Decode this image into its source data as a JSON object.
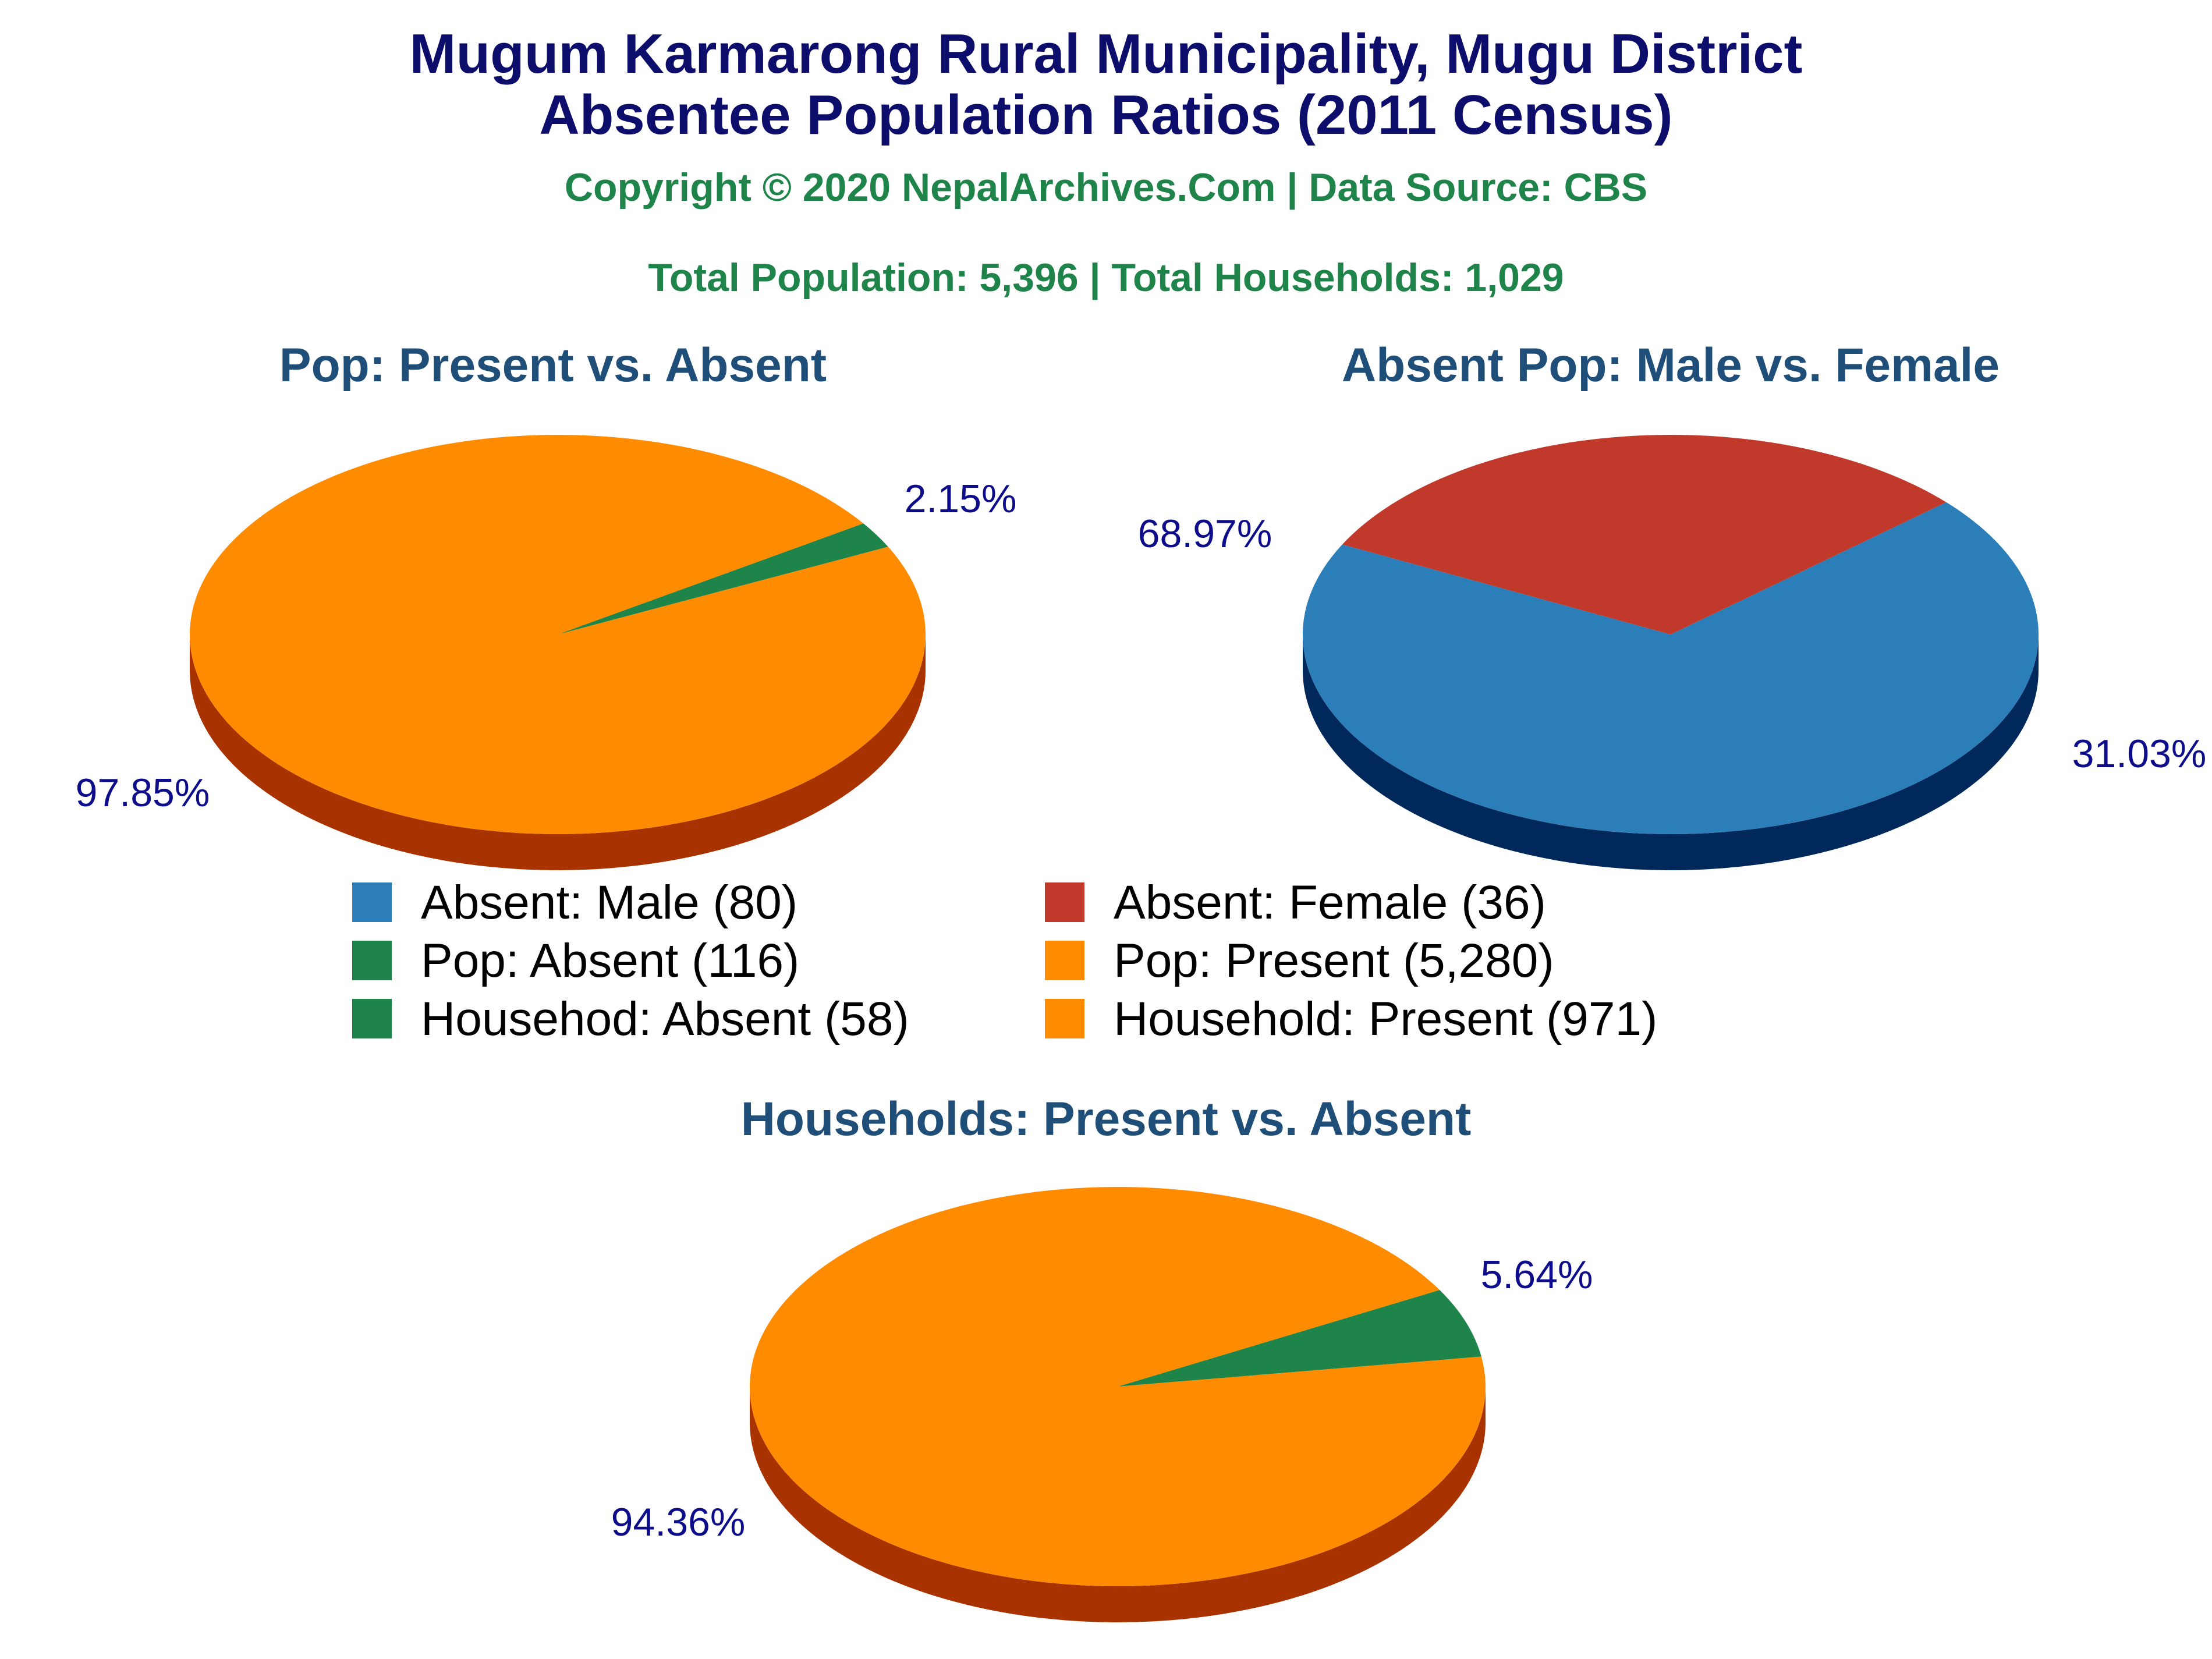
{
  "title_line1": "Mugum Karmarong Rural Municipality, Mugu District",
  "title_line2": "Absentee Population Ratios (2011 Census)",
  "copyright": "Copyright © 2020 NepalArchives.Com | Data Source: CBS",
  "totals": "Total Population: 5,396 | Total Households: 1,029",
  "colors": {
    "orange": "#ff8c00",
    "orange_side": "#a83200",
    "green": "#1e8449",
    "green_side": "#145a32",
    "blue": "#2b7eb8",
    "blue_side": "#00285a",
    "red": "#c0392b",
    "red_side": "#6b0000"
  },
  "chart_data": [
    {
      "type": "pie",
      "title": "Pop: Present vs. Absent",
      "slices": [
        {
          "label": "Pop: Absent",
          "value": 116,
          "percent_label": "2.15%",
          "color": "#1e8449"
        },
        {
          "label": "Pop: Present",
          "value": 5280,
          "percent_label": "97.85%",
          "color": "#ff8c00"
        }
      ]
    },
    {
      "type": "pie",
      "title": "Absent Pop: Male vs. Female",
      "slices": [
        {
          "label": "Absent: Male",
          "value": 80,
          "percent_label": "68.97%",
          "color": "#2b7eb8"
        },
        {
          "label": "Absent: Female",
          "value": 36,
          "percent_label": "31.03%",
          "color": "#c0392b"
        }
      ]
    },
    {
      "type": "pie",
      "title": "Households: Present vs. Absent",
      "slices": [
        {
          "label": "Househod: Absent",
          "value": 58,
          "percent_label": "5.64%",
          "color": "#1e8449"
        },
        {
          "label": "Household: Present",
          "value": 971,
          "percent_label": "94.36%",
          "color": "#ff8c00"
        }
      ]
    }
  ],
  "legend": [
    {
      "label": "Absent: Male (80)",
      "color": "#2b7eb8"
    },
    {
      "label": "Absent: Female (36)",
      "color": "#c0392b"
    },
    {
      "label": "Pop: Absent (116)",
      "color": "#1e8449"
    },
    {
      "label": "Pop: Present (5,280)",
      "color": "#ff8c00"
    },
    {
      "label": "Househod: Absent (58)",
      "color": "#1e8449"
    },
    {
      "label": "Household: Present (971)",
      "color": "#ff8c00"
    }
  ]
}
